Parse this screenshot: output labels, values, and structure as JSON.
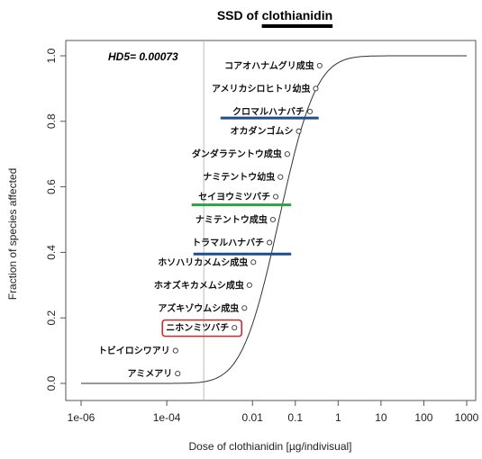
{
  "chart_data": {
    "type": "scatter",
    "title_prefix": "SSD of ",
    "title_chemical": "clothianidin",
    "xlabel": "Dose of clothianidin [µg/indivisual]",
    "ylabel": "Fraction of species affected",
    "x_scale": "log",
    "xlim": [
      1e-06,
      1000
    ],
    "ylim": [
      0,
      1
    ],
    "x_ticks": [
      {
        "value": 1e-06,
        "label": "1e-06"
      },
      {
        "value": 0.0001,
        "label": "1e-04"
      },
      {
        "value": 0.01,
        "label": "0.01"
      },
      {
        "value": 0.1,
        "label": "0.1"
      },
      {
        "value": 1,
        "label": "1"
      },
      {
        "value": 10,
        "label": "10"
      },
      {
        "value": 100,
        "label": "100"
      },
      {
        "value": 1000,
        "label": "1000"
      }
    ],
    "y_ticks": [
      {
        "value": 0.0,
        "label": "0.0"
      },
      {
        "value": 0.2,
        "label": "0.2"
      },
      {
        "value": 0.4,
        "label": "0.4"
      },
      {
        "value": 0.6,
        "label": "0.6"
      },
      {
        "value": 0.8,
        "label": "0.8"
      },
      {
        "value": 1.0,
        "label": "1.0"
      }
    ],
    "hd5_label": "HD5= 0.00073",
    "hd5_value": 0.00073,
    "curve": {
      "median_log10": -1.38,
      "sigma_log10": 0.68
    },
    "points": [
      {
        "label": "アミメアリ",
        "x": 0.00018,
        "y": 0.03
      },
      {
        "label": "トビイロシワアリ",
        "x": 0.00016,
        "y": 0.1
      },
      {
        "label": "ニホンミツバチ",
        "x": 0.0038,
        "y": 0.17,
        "highlight": "#d62728"
      },
      {
        "label": "アズキゾウムシ成虫",
        "x": 0.0065,
        "y": 0.23
      },
      {
        "label": "ホオズキカメムシ成虫",
        "x": 0.0085,
        "y": 0.3
      },
      {
        "label": "ホソハリカメムシ成虫",
        "x": 0.0105,
        "y": 0.37
      },
      {
        "label": "トラマルハナバチ",
        "x": 0.025,
        "y": 0.43
      },
      {
        "label": "ナミテントウ成虫",
        "x": 0.03,
        "y": 0.5
      },
      {
        "label": "セイヨウミツバチ",
        "x": 0.035,
        "y": 0.57
      },
      {
        "label": "ナミテントウ幼虫",
        "x": 0.045,
        "y": 0.63
      },
      {
        "label": "ダンダラテントウ成虫",
        "x": 0.065,
        "y": 0.7
      },
      {
        "label": "オカダンゴムシ",
        "x": 0.12,
        "y": 0.77
      },
      {
        "label": "クロマルハナバチ",
        "x": 0.22,
        "y": 0.83
      },
      {
        "label": "アメリカシロヒトリ幼虫",
        "x": 0.3,
        "y": 0.9
      },
      {
        "label": "コアオハナムグリ成虫",
        "x": 0.37,
        "y": 0.97
      }
    ],
    "range_bars": [
      {
        "species": "トラマルハナバチ",
        "y": 0.395,
        "x_start": 0.00042,
        "x_end": 0.08,
        "color": "#1f4e8c"
      },
      {
        "species": "セイヨウミツバチ",
        "y": 0.545,
        "x_start": 0.00038,
        "x_end": 0.08,
        "color": "#2ea043"
      },
      {
        "species": "クロマルハナバチ",
        "y": 0.81,
        "x_start": 0.0018,
        "x_end": 0.35,
        "color": "#1f4e8c"
      }
    ]
  }
}
